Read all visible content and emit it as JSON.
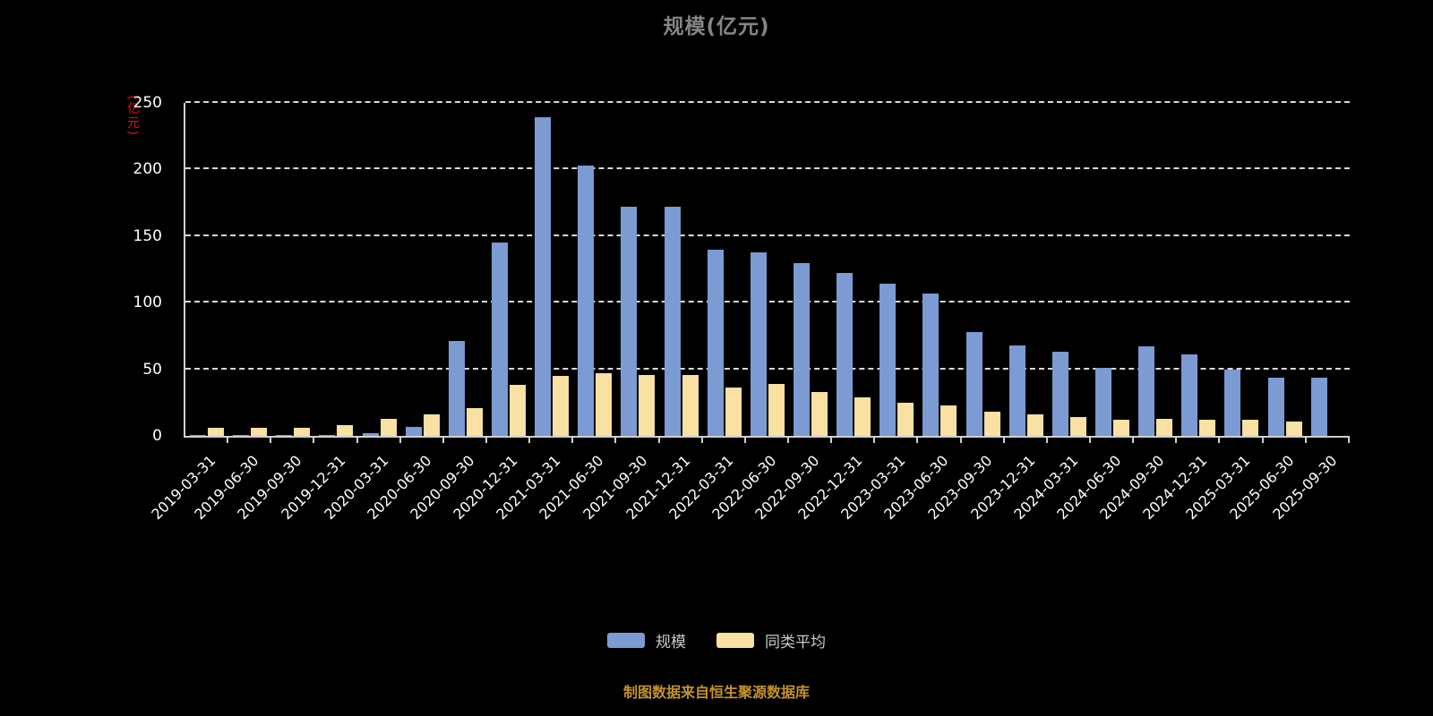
{
  "title": "规模(亿元)",
  "y_axis_name": "(亿元)",
  "footer": "制图数据来自恒生聚源数据库",
  "colors": {
    "background": "#000000",
    "title": "#858585",
    "axis_line": "#cfcfcf",
    "grid_line": "#ffffff",
    "tick_label": "#ffffff",
    "y_axis_name": "#e21212",
    "footer_text": "#c4922b",
    "series_scale": "#7B9BD2",
    "series_peer_average": "#F9E0A3"
  },
  "chart_data": {
    "type": "bar",
    "title": "规模(亿元)",
    "xlabel": "",
    "ylabel": "(亿元)",
    "ylim": [
      0,
      250
    ],
    "yticks": [
      0,
      50,
      100,
      150,
      200,
      250
    ],
    "grid": "dashed-horizontal",
    "legend_position": "bottom",
    "categories": [
      "2019-03-31",
      "2019-06-30",
      "2019-09-30",
      "2019-12-31",
      "2020-03-31",
      "2020-06-30",
      "2020-09-30",
      "2020-12-31",
      "2021-03-31",
      "2021-06-30",
      "2021-09-30",
      "2021-12-31",
      "2022-03-31",
      "2022-06-30",
      "2022-09-30",
      "2022-12-31",
      "2023-03-31",
      "2023-06-30",
      "2023-09-30",
      "2023-12-31",
      "2024-03-31",
      "2024-06-30",
      "2024-09-30",
      "2024-12-31",
      "2025-03-31",
      "2025-06-30",
      "2025-09-30"
    ],
    "series": [
      {
        "name": "规模",
        "color": "#7B9BD2",
        "values": [
          1,
          1,
          1,
          1,
          2,
          7,
          71,
          145,
          239,
          203,
          172,
          172,
          140,
          138,
          130,
          122,
          114,
          107,
          78,
          68,
          63,
          51,
          67,
          61,
          50,
          44,
          44
        ]
      },
      {
        "name": "同类平均",
        "color": "#F9E0A3",
        "values": [
          6,
          6,
          6,
          8,
          13,
          16,
          21,
          38,
          45,
          47,
          46,
          46,
          36,
          39,
          33,
          29,
          25,
          23,
          18,
          16,
          14,
          12,
          13,
          12,
          12,
          11,
          0
        ]
      }
    ]
  }
}
